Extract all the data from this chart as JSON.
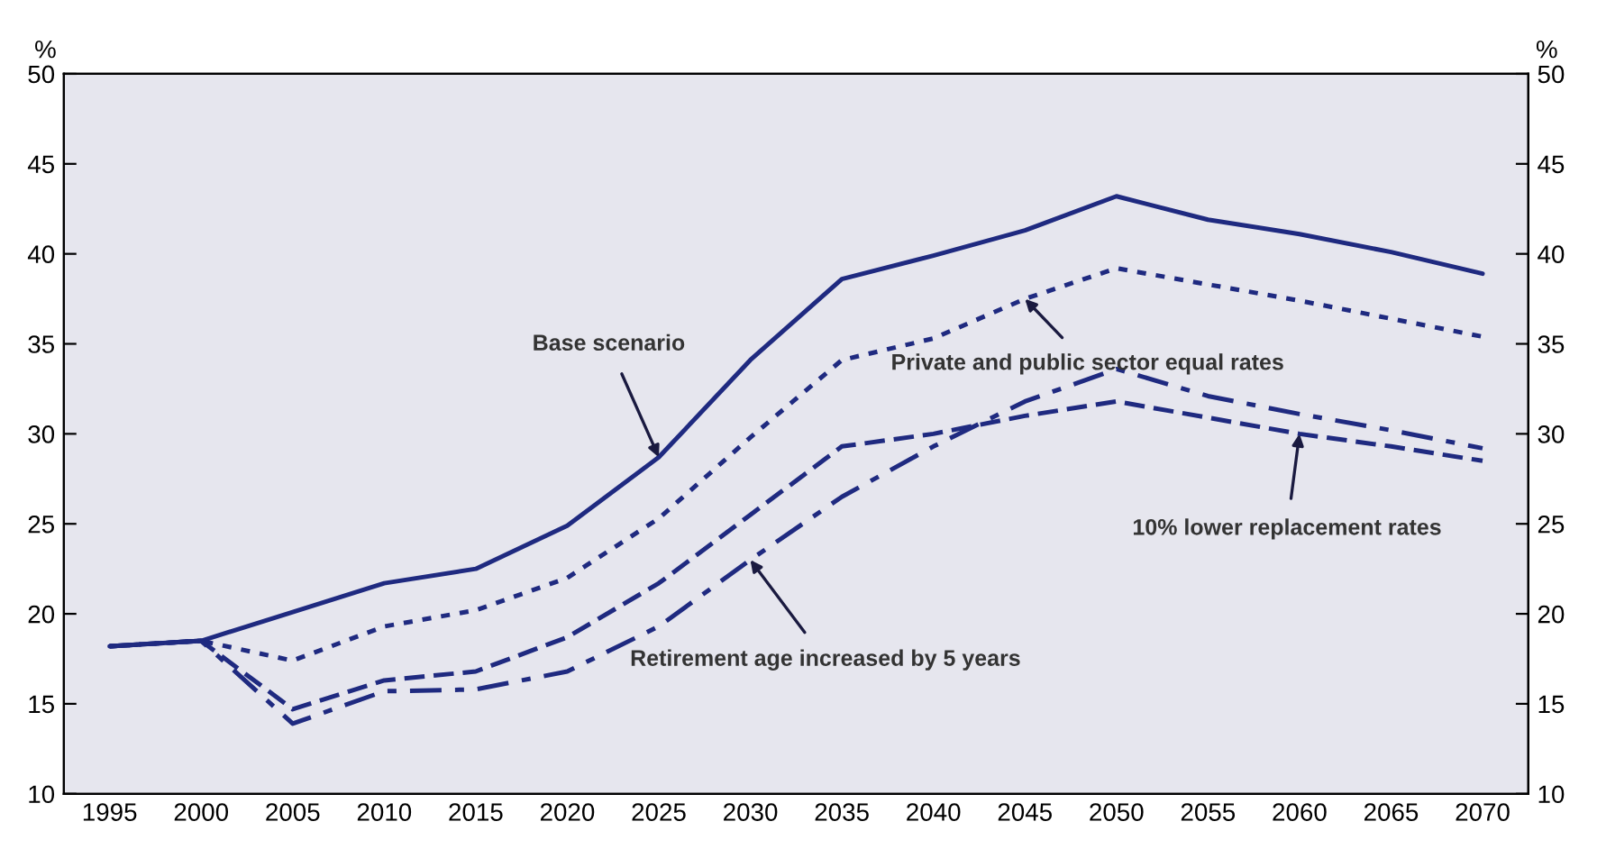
{
  "chart_data": {
    "type": "line",
    "ylabel": "%",
    "y2label": "%",
    "categories": [
      "1995",
      "2000",
      "2005",
      "2010",
      "2015",
      "2020",
      "2025",
      "2030",
      "2035",
      "2040",
      "2045",
      "2050",
      "2055",
      "2060",
      "2065",
      "2070"
    ],
    "ylim": [
      10,
      50
    ],
    "yticks": [
      10,
      15,
      20,
      25,
      30,
      35,
      40,
      45,
      50
    ],
    "y2lim": [
      10,
      50
    ],
    "y2ticks": [
      10,
      15,
      20,
      25,
      30,
      35,
      40,
      45,
      50
    ],
    "grid": false,
    "legend": false,
    "series": [
      {
        "color": "#1f2a80",
        "line_style": "solid",
        "values": [
          18.2,
          18.5,
          20.1,
          21.7,
          22.5,
          24.9,
          28.7,
          34.1,
          38.6,
          39.9,
          41.3,
          43.2,
          41.9,
          41.1,
          40.1,
          38.9
        ]
      },
      {
        "color": "#1f2a80",
        "line_style": "dotted",
        "values": [
          18.2,
          18.5,
          17.4,
          19.3,
          20.2,
          22.0,
          25.3,
          29.8,
          34.1,
          35.3,
          37.5,
          39.2,
          38.3,
          37.4,
          36.4,
          35.4
        ]
      },
      {
        "color": "#1f2a80",
        "line_style": "dashed",
        "values": [
          18.2,
          18.5,
          14.7,
          16.3,
          16.8,
          18.7,
          21.7,
          25.5,
          29.3,
          30.0,
          31.0,
          31.8,
          30.9,
          30.0,
          29.3,
          28.5
        ]
      },
      {
        "color": "#1f2a80",
        "line_style": "dashdot",
        "values": [
          18.2,
          18.5,
          13.9,
          15.7,
          15.8,
          16.8,
          19.3,
          23.0,
          26.5,
          29.3,
          31.8,
          33.6,
          32.1,
          31.1,
          30.2,
          29.2
        ]
      }
    ],
    "annotations": [
      {
        "text": "Base scenario",
        "x": "2025",
        "y": 28.7
      },
      {
        "text": "Private and public sector equal rates",
        "x": "2045",
        "y": 37.5
      },
      {
        "text": "10% lower replacement rates",
        "x": "2060",
        "y": 30.0
      },
      {
        "text": "Retirement age increased by 5 years",
        "x": "2030",
        "y": 23.0
      }
    ]
  }
}
